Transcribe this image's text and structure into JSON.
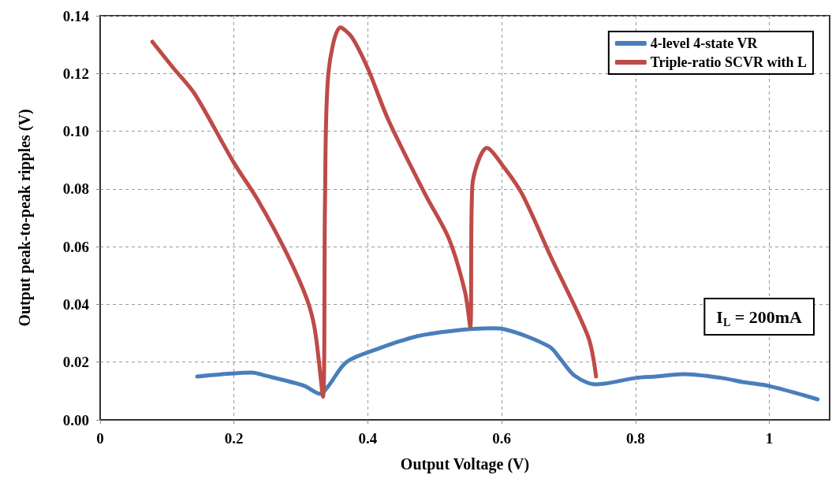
{
  "chart_data": {
    "type": "line",
    "xlabel": "Output Voltage (V)",
    "ylabel": "Output peak-to-peak ripples (V)",
    "xlim": [
      0,
      1.09
    ],
    "xticks": [
      0,
      0.2,
      0.4,
      0.6,
      0.8,
      1
    ],
    "ylim": [
      0,
      0.14
    ],
    "yticks": [
      {
        "value": 0,
        "label": "0.00"
      },
      {
        "value": 0.02,
        "label": "0.02"
      },
      {
        "value": 0.04,
        "label": "0.04"
      },
      {
        "value": 0.06,
        "label": "0.06"
      },
      {
        "value": 0.08,
        "label": "0.08"
      },
      {
        "value": 0.1,
        "label": "0.10"
      },
      {
        "value": 0.12,
        "label": "0.12"
      },
      {
        "value": 0.14,
        "label": "0.14"
      }
    ],
    "grid": true,
    "legend": "top right",
    "marker": "none",
    "line_style": "solid",
    "annotations": [
      "I$_{L}$ = 200mA"
    ],
    "series": [
      {
        "name": "4-level 4-state VR",
        "color": "#4a7ebb",
        "x": [
          0.145,
          0.227,
          0.247,
          0.294,
          0.306,
          0.329,
          0.341,
          0.368,
          0.415,
          0.474,
          0.525,
          0.584,
          0.604,
          0.671,
          0.689,
          0.709,
          0.741,
          0.8,
          0.831,
          0.871,
          0.929,
          0.96,
          1.0,
          1.072
        ],
        "values": [
          0.015,
          0.0164,
          0.0153,
          0.0126,
          0.0117,
          0.009,
          0.0117,
          0.02,
          0.0246,
          0.029,
          0.0308,
          0.0317,
          0.0314,
          0.0254,
          0.0207,
          0.0153,
          0.0123,
          0.0145,
          0.015,
          0.0158,
          0.0145,
          0.0131,
          0.0117,
          0.0071
        ]
      },
      {
        "name": "Triple-ratio SCVR with L",
        "color": "#be4b48",
        "x": [
          0.078,
          0.109,
          0.141,
          0.2,
          0.235,
          0.278,
          0.309,
          0.321,
          0.333,
          0.336,
          0.341,
          0.359,
          0.376,
          0.4,
          0.431,
          0.486,
          0.521,
          0.545,
          0.553,
          0.556,
          0.578,
          0.604,
          0.631,
          0.674,
          0.729,
          0.741
        ],
        "values": [
          0.131,
          0.122,
          0.113,
          0.089,
          0.0764,
          0.058,
          0.0418,
          0.031,
          0.008,
          0.076,
          0.12,
          0.136,
          0.1326,
          0.1217,
          0.1037,
          0.078,
          0.0628,
          0.0445,
          0.0322,
          0.0808,
          0.0942,
          0.0873,
          0.078,
          0.0562,
          0.0289,
          0.015
        ]
      }
    ]
  }
}
